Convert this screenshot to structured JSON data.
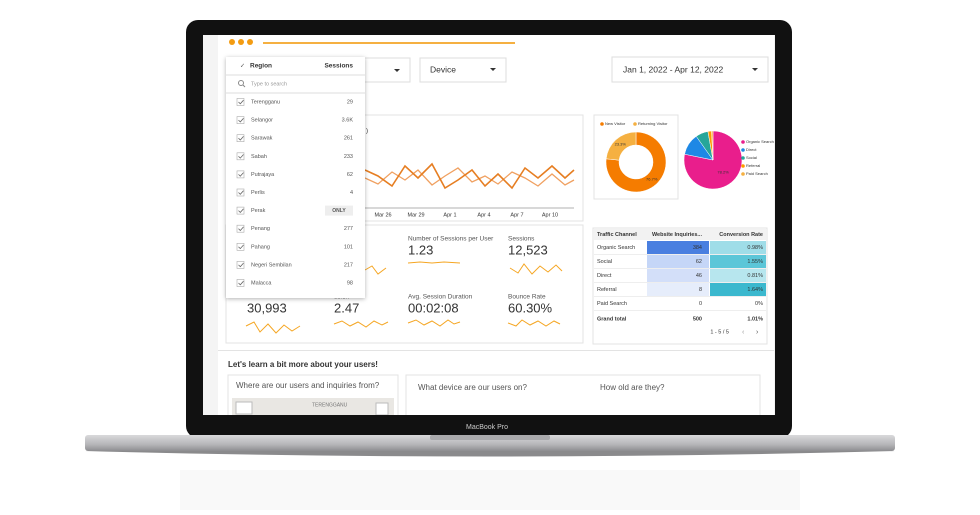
{
  "device_label": "MacBook Pro",
  "filters": {
    "region": {
      "header": "Region",
      "metric": "Sessions",
      "search_placeholder": "Type to search",
      "only_button": "ONLY",
      "items": [
        {
          "name": "Terengganu",
          "sessions": "29"
        },
        {
          "name": "Selangor",
          "sessions": "3.6K"
        },
        {
          "name": "Sarawak",
          "sessions": "261"
        },
        {
          "name": "Sabah",
          "sessions": "233"
        },
        {
          "name": "Putrajaya",
          "sessions": "62"
        },
        {
          "name": "Perlis",
          "sessions": "4"
        },
        {
          "name": "Perak",
          "sessions": ""
        },
        {
          "name": "Penang",
          "sessions": "277"
        },
        {
          "name": "Pahang",
          "sessions": "101"
        },
        {
          "name": "Negeri Sembilan",
          "sessions": "217"
        },
        {
          "name": "Malacca",
          "sessions": "98"
        }
      ]
    },
    "device": "Device",
    "date_range": "Jan 1, 2022 - Apr 12, 2022"
  },
  "line_chart": {
    "x_labels": [
      "Mar 26",
      "Mar 29",
      "Apr 1",
      "Apr 4",
      "Apr 7",
      "Apr 10"
    ]
  },
  "visitor_donut": {
    "legend": [
      "New Visitor",
      "Returning Visitor"
    ],
    "values": [
      76.7,
      23.3
    ],
    "value_labels": [
      "76.7%",
      "23.3%"
    ]
  },
  "channel_pie": {
    "legend": [
      "Organic Search",
      "Direct",
      "Social",
      "Referral",
      "Paid Search"
    ],
    "values": [
      78.2,
      12,
      7,
      2,
      0.8
    ],
    "value_labels": [
      "78.2%",
      null,
      null,
      null,
      null
    ]
  },
  "metrics": [
    {
      "label": "Number of Sessions per User",
      "value": "1.23"
    },
    {
      "label": "Sessions",
      "value": "12,523"
    },
    {
      "label": null,
      "value": "30,993"
    },
    {
      "label": "ssion",
      "value": "2.47"
    },
    {
      "label": "Avg. Session Duration",
      "value": "00:02:08"
    },
    {
      "label": "Bounce Rate",
      "value": "60.30%"
    }
  ],
  "table": {
    "columns": [
      "Traffic Channel",
      "Website Inquiries...",
      "Conversion Rate"
    ],
    "rows": [
      [
        "Organic Search",
        "384",
        "0.98%"
      ],
      [
        "Social",
        "62",
        "1.55%"
      ],
      [
        "Direct",
        "46",
        "0.81%"
      ],
      [
        "Referral",
        "8",
        "1.64%"
      ],
      [
        "Paid Search",
        "0",
        "0%"
      ]
    ],
    "total": [
      "Grand total",
      "500",
      "1.01%"
    ],
    "pager": "1 - 5 / 5"
  },
  "section": {
    "title": "Let's learn a bit more about your users!",
    "map_card": "Where are our users and inquiries from?",
    "map_label": "TERENGGANU",
    "device_card": "What device are our users on?",
    "age_card": "How old are they?"
  }
}
